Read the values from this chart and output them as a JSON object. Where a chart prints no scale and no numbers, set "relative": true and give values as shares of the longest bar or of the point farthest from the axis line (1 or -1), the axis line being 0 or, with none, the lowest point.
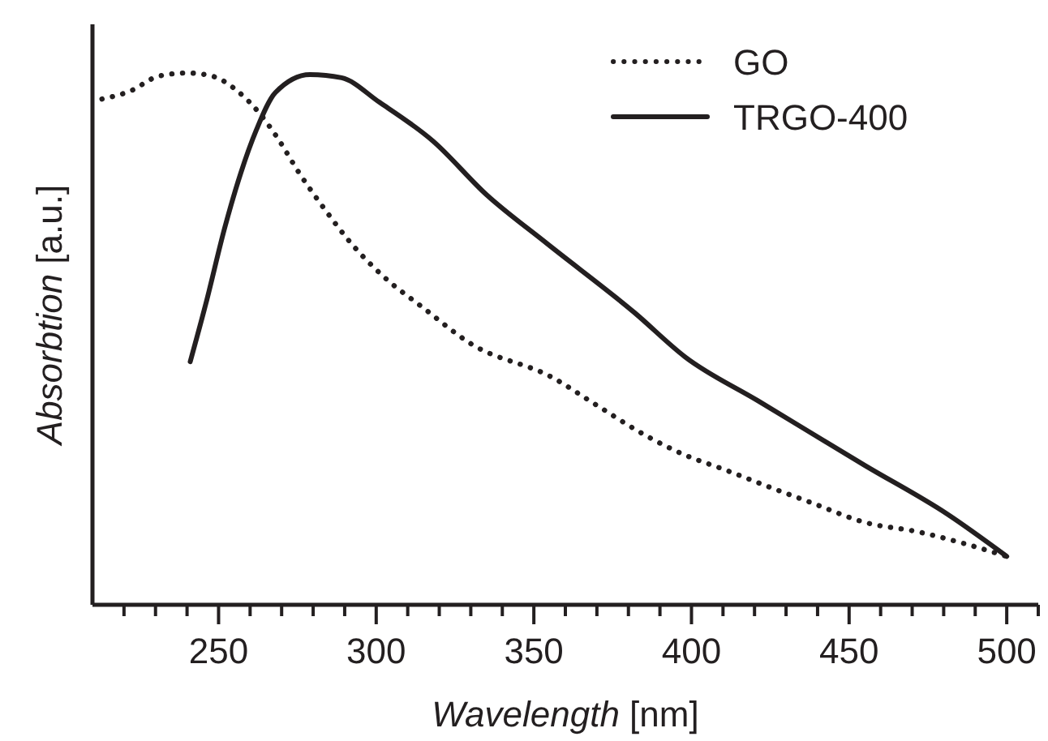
{
  "chart_data": {
    "type": "line",
    "xlabel": "Wavelength [nm]",
    "ylabel": "Absorbtion [a.u.]",
    "relative": true,
    "xlim": [
      210,
      510
    ],
    "xticks": [
      {
        "value": 220,
        "label": null
      },
      {
        "value": 230,
        "label": null
      },
      {
        "value": 240,
        "label": null
      },
      250,
      {
        "value": 260,
        "label": null
      },
      {
        "value": 270,
        "label": null
      },
      {
        "value": 280,
        "label": null
      },
      {
        "value": 290,
        "label": null
      },
      300,
      {
        "value": 310,
        "label": null
      },
      {
        "value": 320,
        "label": null
      },
      {
        "value": 330,
        "label": null
      },
      {
        "value": 340,
        "label": null
      },
      350,
      {
        "value": 360,
        "label": null
      },
      {
        "value": 370,
        "label": null
      },
      {
        "value": 380,
        "label": null
      },
      {
        "value": 390,
        "label": null
      },
      400,
      {
        "value": 410,
        "label": null
      },
      {
        "value": 420,
        "label": null
      },
      {
        "value": 430,
        "label": null
      },
      {
        "value": 440,
        "label": null
      },
      450,
      {
        "value": 460,
        "label": null
      },
      {
        "value": 470,
        "label": null
      },
      {
        "value": 480,
        "label": null
      },
      {
        "value": 490,
        "label": null
      },
      500,
      {
        "value": 510,
        "label": null
      }
    ],
    "legend": "top right",
    "grid": false,
    "series": [
      {
        "name": "GO",
        "color": "#231f20",
        "line_style": "dotted",
        "x": [
          213,
          222,
          231,
          240,
          248,
          256,
          263,
          268,
          276,
          284,
          292,
          302,
          315,
          330,
          356,
          370,
          385,
          397,
          411,
          424,
          438,
          455,
          472,
          486,
          500
        ],
        "values": [
          0.951,
          0.966,
          0.994,
          1.0,
          0.994,
          0.966,
          0.924,
          0.884,
          0.808,
          0.741,
          0.68,
          0.619,
          0.558,
          0.491,
          0.427,
          0.375,
          0.32,
          0.284,
          0.253,
          0.223,
          0.192,
          0.155,
          0.137,
          0.116,
          0.091
        ]
      },
      {
        "name": "TRGO-400",
        "color": "#231f20",
        "line_style": "solid",
        "x": [
          241,
          246,
          252,
          257,
          262,
          268,
          279,
          289,
          301,
          318,
          335,
          354,
          382,
          398,
          421,
          455,
          481,
          500
        ],
        "values": [
          0.457,
          0.567,
          0.71,
          0.811,
          0.893,
          0.963,
          0.997,
          0.991,
          0.945,
          0.872,
          0.771,
          0.68,
          0.549,
          0.466,
          0.384,
          0.262,
          0.171,
          0.091
        ]
      }
    ]
  }
}
